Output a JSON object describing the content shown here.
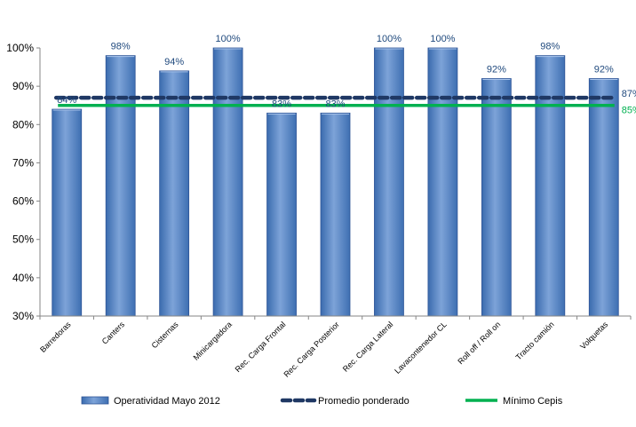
{
  "chart_data": {
    "type": "bar",
    "categories": [
      "Barredoras",
      "Canters",
      "Cisternas",
      "Minicargadora",
      "Rec. Carga Frontal",
      "Rec. Carga Posterior",
      "Rec. Carga Lateral",
      "Lavacontenedor CL",
      "Roll off / Roll on",
      "Tracto camión",
      "Volquetas"
    ],
    "series": [
      {
        "name": "Operatividad Mayo 2012",
        "values": [
          84,
          98,
          94,
          100,
          83,
          83,
          100,
          100,
          92,
          98,
          92
        ],
        "labels": [
          "84%",
          "98%",
          "94%",
          "100%",
          "83%",
          "83%",
          "100%",
          "100%",
          "92%",
          "98%",
          "92%"
        ],
        "color": "#4F81BD"
      }
    ],
    "reference_lines": [
      {
        "name": "Promedio ponderado",
        "value": 87,
        "label": "87%",
        "style": "dashed",
        "color": "#1F3864"
      },
      {
        "name": "Mínimo Cepis",
        "value": 85,
        "label": "85%",
        "style": "solid",
        "color": "#00B050"
      }
    ],
    "ylim": [
      30,
      100
    ],
    "yticks": [
      30,
      40,
      50,
      60,
      70,
      80,
      90,
      100
    ],
    "ytick_labels": [
      "30%",
      "40%",
      "50%",
      "60%",
      "70%",
      "80%",
      "90%",
      "100%"
    ],
    "grid": false,
    "legend_position": "bottom",
    "title": "",
    "xlabel": "",
    "ylabel": ""
  }
}
